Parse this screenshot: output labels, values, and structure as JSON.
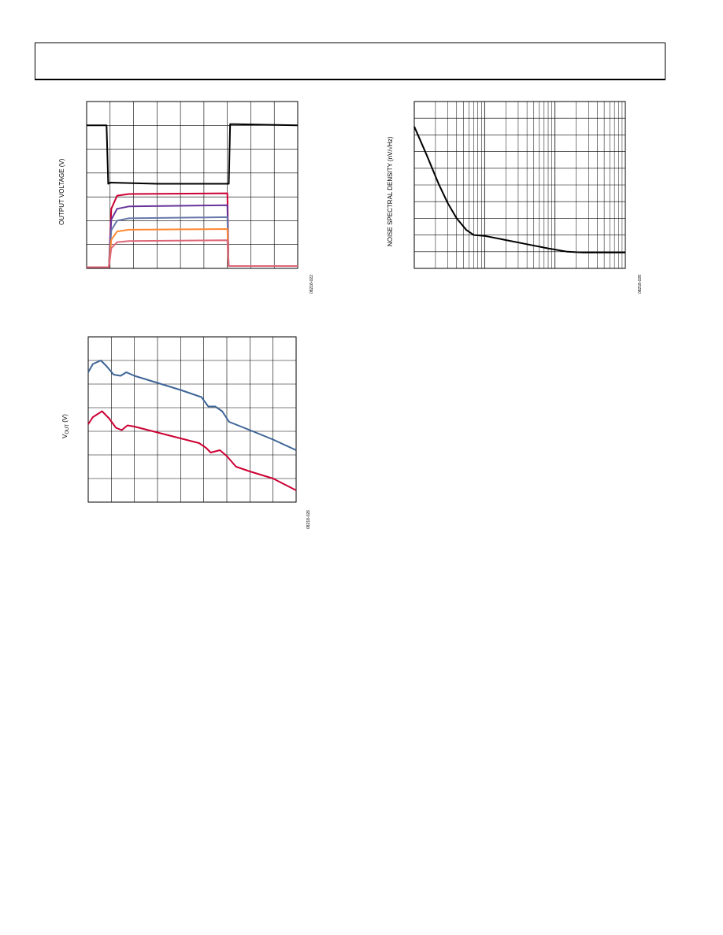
{
  "chart_data": [
    {
      "id": "fig1",
      "type": "line",
      "ylabel": "OUTPUT VOLTAGE (V)",
      "figure_id": "08218-022",
      "grid": true,
      "grid_divisions": {
        "x": 9,
        "y": 7
      },
      "xlim": [
        0,
        9
      ],
      "ylim": [
        0,
        7
      ],
      "series": [
        {
          "color": "#000000",
          "points": [
            [
              0,
              6
            ],
            [
              0.85,
              6
            ],
            [
              0.92,
              3.55
            ],
            [
              1.0,
              3.6
            ],
            [
              3,
              3.55
            ],
            [
              6.06,
              3.55
            ],
            [
              6.12,
              6.05
            ],
            [
              6.3,
              6.05
            ],
            [
              9,
              6
            ]
          ]
        },
        {
          "color": "#cc0033",
          "points": [
            [
              0,
              0.05
            ],
            [
              0.95,
              0.05
            ],
            [
              1.05,
              2.5
            ],
            [
              1.3,
              3.05
            ],
            [
              1.8,
              3.12
            ],
            [
              6.0,
              3.15
            ],
            [
              6.05,
              0.1
            ],
            [
              9,
              0.1
            ]
          ]
        },
        {
          "color": "#663399",
          "points": [
            [
              0,
              0.05
            ],
            [
              0.95,
              0.05
            ],
            [
              1.05,
              2.05
            ],
            [
              1.3,
              2.5
            ],
            [
              1.8,
              2.6
            ],
            [
              6.0,
              2.65
            ],
            [
              6.05,
              0.1
            ],
            [
              9,
              0.1
            ]
          ]
        },
        {
          "color": "#6677aa",
          "points": [
            [
              0,
              0.05
            ],
            [
              0.95,
              0.05
            ],
            [
              1.05,
              1.6
            ],
            [
              1.3,
              2.0
            ],
            [
              1.8,
              2.1
            ],
            [
              6.0,
              2.15
            ],
            [
              6.05,
              0.1
            ],
            [
              9,
              0.1
            ]
          ]
        },
        {
          "color": "#ff8833",
          "points": [
            [
              0,
              0.05
            ],
            [
              0.95,
              0.05
            ],
            [
              1.05,
              1.2
            ],
            [
              1.3,
              1.55
            ],
            [
              1.8,
              1.62
            ],
            [
              6.0,
              1.65
            ],
            [
              6.05,
              0.1
            ],
            [
              9,
              0.1
            ]
          ]
        },
        {
          "color": "#dd6677",
          "points": [
            [
              0,
              0.05
            ],
            [
              0.95,
              0.05
            ],
            [
              1.05,
              0.85
            ],
            [
              1.3,
              1.1
            ],
            [
              1.8,
              1.15
            ],
            [
              6.0,
              1.18
            ],
            [
              6.05,
              0.1
            ],
            [
              9,
              0.1
            ]
          ]
        }
      ]
    },
    {
      "id": "fig2",
      "type": "line",
      "ylabel": "NOISE SPECTRAL DENSITY (nV/√Hz)",
      "figure_id": "08218-029",
      "grid": true,
      "log_x": true,
      "decades": 3,
      "grid_divisions": {
        "y": 10
      },
      "xlim": [
        1,
        1000
      ],
      "ylim": [
        0,
        10
      ],
      "series": [
        {
          "color": "#000000",
          "points": [
            [
              1,
              8.5
            ],
            [
              1.5,
              6.8
            ],
            [
              2.2,
              5.1
            ],
            [
              3,
              3.9
            ],
            [
              4,
              3.0
            ],
            [
              5.5,
              2.3
            ],
            [
              7,
              2.0
            ],
            [
              10,
              1.95
            ],
            [
              20,
              1.7
            ],
            [
              40,
              1.45
            ],
            [
              80,
              1.2
            ],
            [
              150,
              1.0
            ],
            [
              250,
              0.95
            ],
            [
              1000,
              0.95
            ]
          ]
        }
      ]
    },
    {
      "id": "fig3",
      "type": "line",
      "ylabel_main": "V",
      "ylabel_sub": "OUT",
      "ylabel_unit": " (V)",
      "figure_id": "08218-026",
      "grid": true,
      "grid_divisions": {
        "x": 9,
        "y": 7
      },
      "xlim": [
        0,
        9
      ],
      "ylim": [
        0,
        7
      ],
      "series": [
        {
          "color": "#3d6496",
          "points": [
            [
              0,
              5.5
            ],
            [
              0.2,
              5.85
            ],
            [
              0.55,
              6.0
            ],
            [
              0.8,
              5.75
            ],
            [
              1.1,
              5.4
            ],
            [
              1.4,
              5.35
            ],
            [
              1.65,
              5.5
            ],
            [
              2,
              5.35
            ],
            [
              3,
              5.05
            ],
            [
              4,
              4.75
            ],
            [
              4.9,
              4.45
            ],
            [
              5.2,
              4.05
            ],
            [
              5.5,
              4.05
            ],
            [
              5.8,
              3.85
            ],
            [
              6.1,
              3.4
            ],
            [
              7,
              3.05
            ],
            [
              8,
              2.65
            ],
            [
              9,
              2.2
            ]
          ]
        },
        {
          "color": "#cc0033",
          "points": [
            [
              0,
              3.3
            ],
            [
              0.2,
              3.6
            ],
            [
              0.6,
              3.85
            ],
            [
              0.9,
              3.55
            ],
            [
              1.2,
              3.15
            ],
            [
              1.45,
              3.05
            ],
            [
              1.7,
              3.25
            ],
            [
              2,
              3.2
            ],
            [
              3,
              2.95
            ],
            [
              4,
              2.7
            ],
            [
              4.8,
              2.5
            ],
            [
              5.1,
              2.3
            ],
            [
              5.3,
              2.1
            ],
            [
              5.7,
              2.2
            ],
            [
              6,
              1.95
            ],
            [
              6.4,
              1.5
            ],
            [
              7,
              1.3
            ],
            [
              8,
              1.0
            ],
            [
              9,
              0.5
            ]
          ]
        }
      ]
    }
  ]
}
